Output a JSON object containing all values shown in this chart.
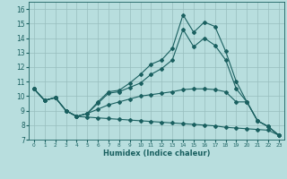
{
  "xlabel": "Humidex (Indice chaleur)",
  "xlim": [
    -0.5,
    23.5
  ],
  "ylim": [
    7,
    16.5
  ],
  "yticks": [
    7,
    8,
    9,
    10,
    11,
    12,
    13,
    14,
    15,
    16
  ],
  "xticks": [
    0,
    1,
    2,
    3,
    4,
    5,
    6,
    7,
    8,
    9,
    10,
    11,
    12,
    13,
    14,
    15,
    16,
    17,
    18,
    19,
    20,
    21,
    22,
    23
  ],
  "bg_color": "#b8dede",
  "grid_color": "#98bebe",
  "line_color": "#1a6060",
  "y_main": [
    10.5,
    9.7,
    9.9,
    9.0,
    8.6,
    8.8,
    9.6,
    10.3,
    10.4,
    10.9,
    11.5,
    12.2,
    12.5,
    13.3,
    15.6,
    14.4,
    15.1,
    14.8,
    13.1,
    11.0,
    9.6,
    8.3,
    7.9,
    7.3
  ],
  "y_low": [
    10.5,
    9.7,
    9.9,
    9.0,
    8.6,
    8.55,
    8.5,
    8.45,
    8.4,
    8.35,
    8.3,
    8.25,
    8.2,
    8.15,
    8.1,
    8.05,
    8.0,
    7.95,
    7.85,
    7.8,
    7.75,
    7.7,
    7.65,
    7.3
  ],
  "y_mid1": [
    10.5,
    9.7,
    9.9,
    9.0,
    8.6,
    8.8,
    9.1,
    9.4,
    9.6,
    9.8,
    10.0,
    10.1,
    10.2,
    10.3,
    10.45,
    10.5,
    10.5,
    10.45,
    10.3,
    9.6,
    9.6,
    8.3,
    7.9,
    7.3
  ],
  "y_mid2": [
    10.5,
    9.7,
    9.9,
    9.0,
    8.6,
    8.8,
    9.5,
    10.2,
    10.3,
    10.6,
    10.9,
    11.5,
    11.9,
    12.5,
    14.6,
    13.4,
    14.0,
    13.5,
    12.5,
    10.5,
    9.6,
    8.3,
    7.9,
    7.3
  ]
}
